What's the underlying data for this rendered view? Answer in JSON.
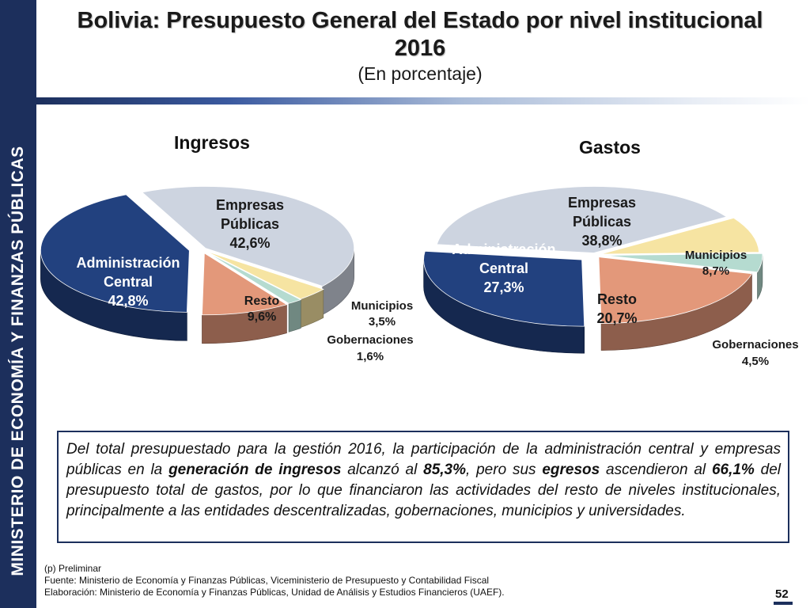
{
  "sidebar": {
    "label": "MINISTERIO DE ECONOMÍA Y FINANZAS PÚBLICAS"
  },
  "title": {
    "line1": "Bolivia: Presupuesto General del Estado por nivel institucional",
    "line2": "2016",
    "subtitle": "(En porcentaje)"
  },
  "colors": {
    "administracion": "#22417f",
    "empresas": "#cdd4e0",
    "municipios": "#f6e4a2",
    "gobernaciones": "#b5dbd0",
    "resto": "#e3987a",
    "sidebar": "#1c2f5c"
  },
  "chart_data": [
    {
      "type": "pie",
      "title": "Ingresos",
      "slices": [
        {
          "label": "Administración Central",
          "value": 42.8,
          "display": "42,8%"
        },
        {
          "label": "Empresas Públicas",
          "value": 42.6,
          "display": "42,6%"
        },
        {
          "label": "Municipios",
          "value": 3.5,
          "display": "3,5%"
        },
        {
          "label": "Gobernaciones",
          "value": 1.6,
          "display": "1,6%"
        },
        {
          "label": "Resto",
          "value": 9.6,
          "display": "9,6%"
        }
      ]
    },
    {
      "type": "pie",
      "title": "Gastos",
      "slices": [
        {
          "label": "Administración Central",
          "value": 27.3,
          "display": "27,3%"
        },
        {
          "label": "Empresas Públicas",
          "value": 38.8,
          "display": "38,8%"
        },
        {
          "label": "Municipios",
          "value": 8.7,
          "display": "8,7%"
        },
        {
          "label": "Gobernaciones",
          "value": 4.5,
          "display": "4,5%"
        },
        {
          "label": "Resto",
          "value": 20.7,
          "display": "20,7%"
        }
      ]
    }
  ],
  "labels": {
    "ingresos": {
      "adm_1": "Administración",
      "adm_2": "Central",
      "emp_1": "Empresas",
      "emp_2": "Públicas",
      "resto": "Resto",
      "mun": "Municipios",
      "gob": "Gobernaciones"
    },
    "gastos": {
      "adm_1": "Administración",
      "adm_2": "Central",
      "emp_1": "Empresas",
      "emp_2": "Públicas",
      "resto": "Resto",
      "mun": "Municipios",
      "gob": "Gobernaciones"
    }
  },
  "summary": {
    "t1": "Del total presupuestado para la gestión 2016, la participación de la administración central y empresas públicas en la ",
    "b1": "generación de ingresos",
    "t2": " alcanzó al ",
    "b2": "85,3%",
    "t3": ", pero sus ",
    "b3": "egresos",
    "t4": " ascendieron al ",
    "b4": "66,1%",
    "t5": " del presupuesto total de gastos, por lo que financiaron las actividades del resto de niveles institucionales, principalmente a las entidades descentralizadas, gobernaciones, municipios y universidades."
  },
  "footnotes": {
    "f1": "(p) Preliminar",
    "f2": "Fuente: Ministerio de Economía y Finanzas Públicas, Viceministerio de Presupuesto y Contabilidad Fiscal",
    "f3": "Elaboración: Ministerio de Economía y Finanzas Públicas, Unidad de Análisis y Estudios Financieros (UAEF)."
  },
  "page_number": "52"
}
